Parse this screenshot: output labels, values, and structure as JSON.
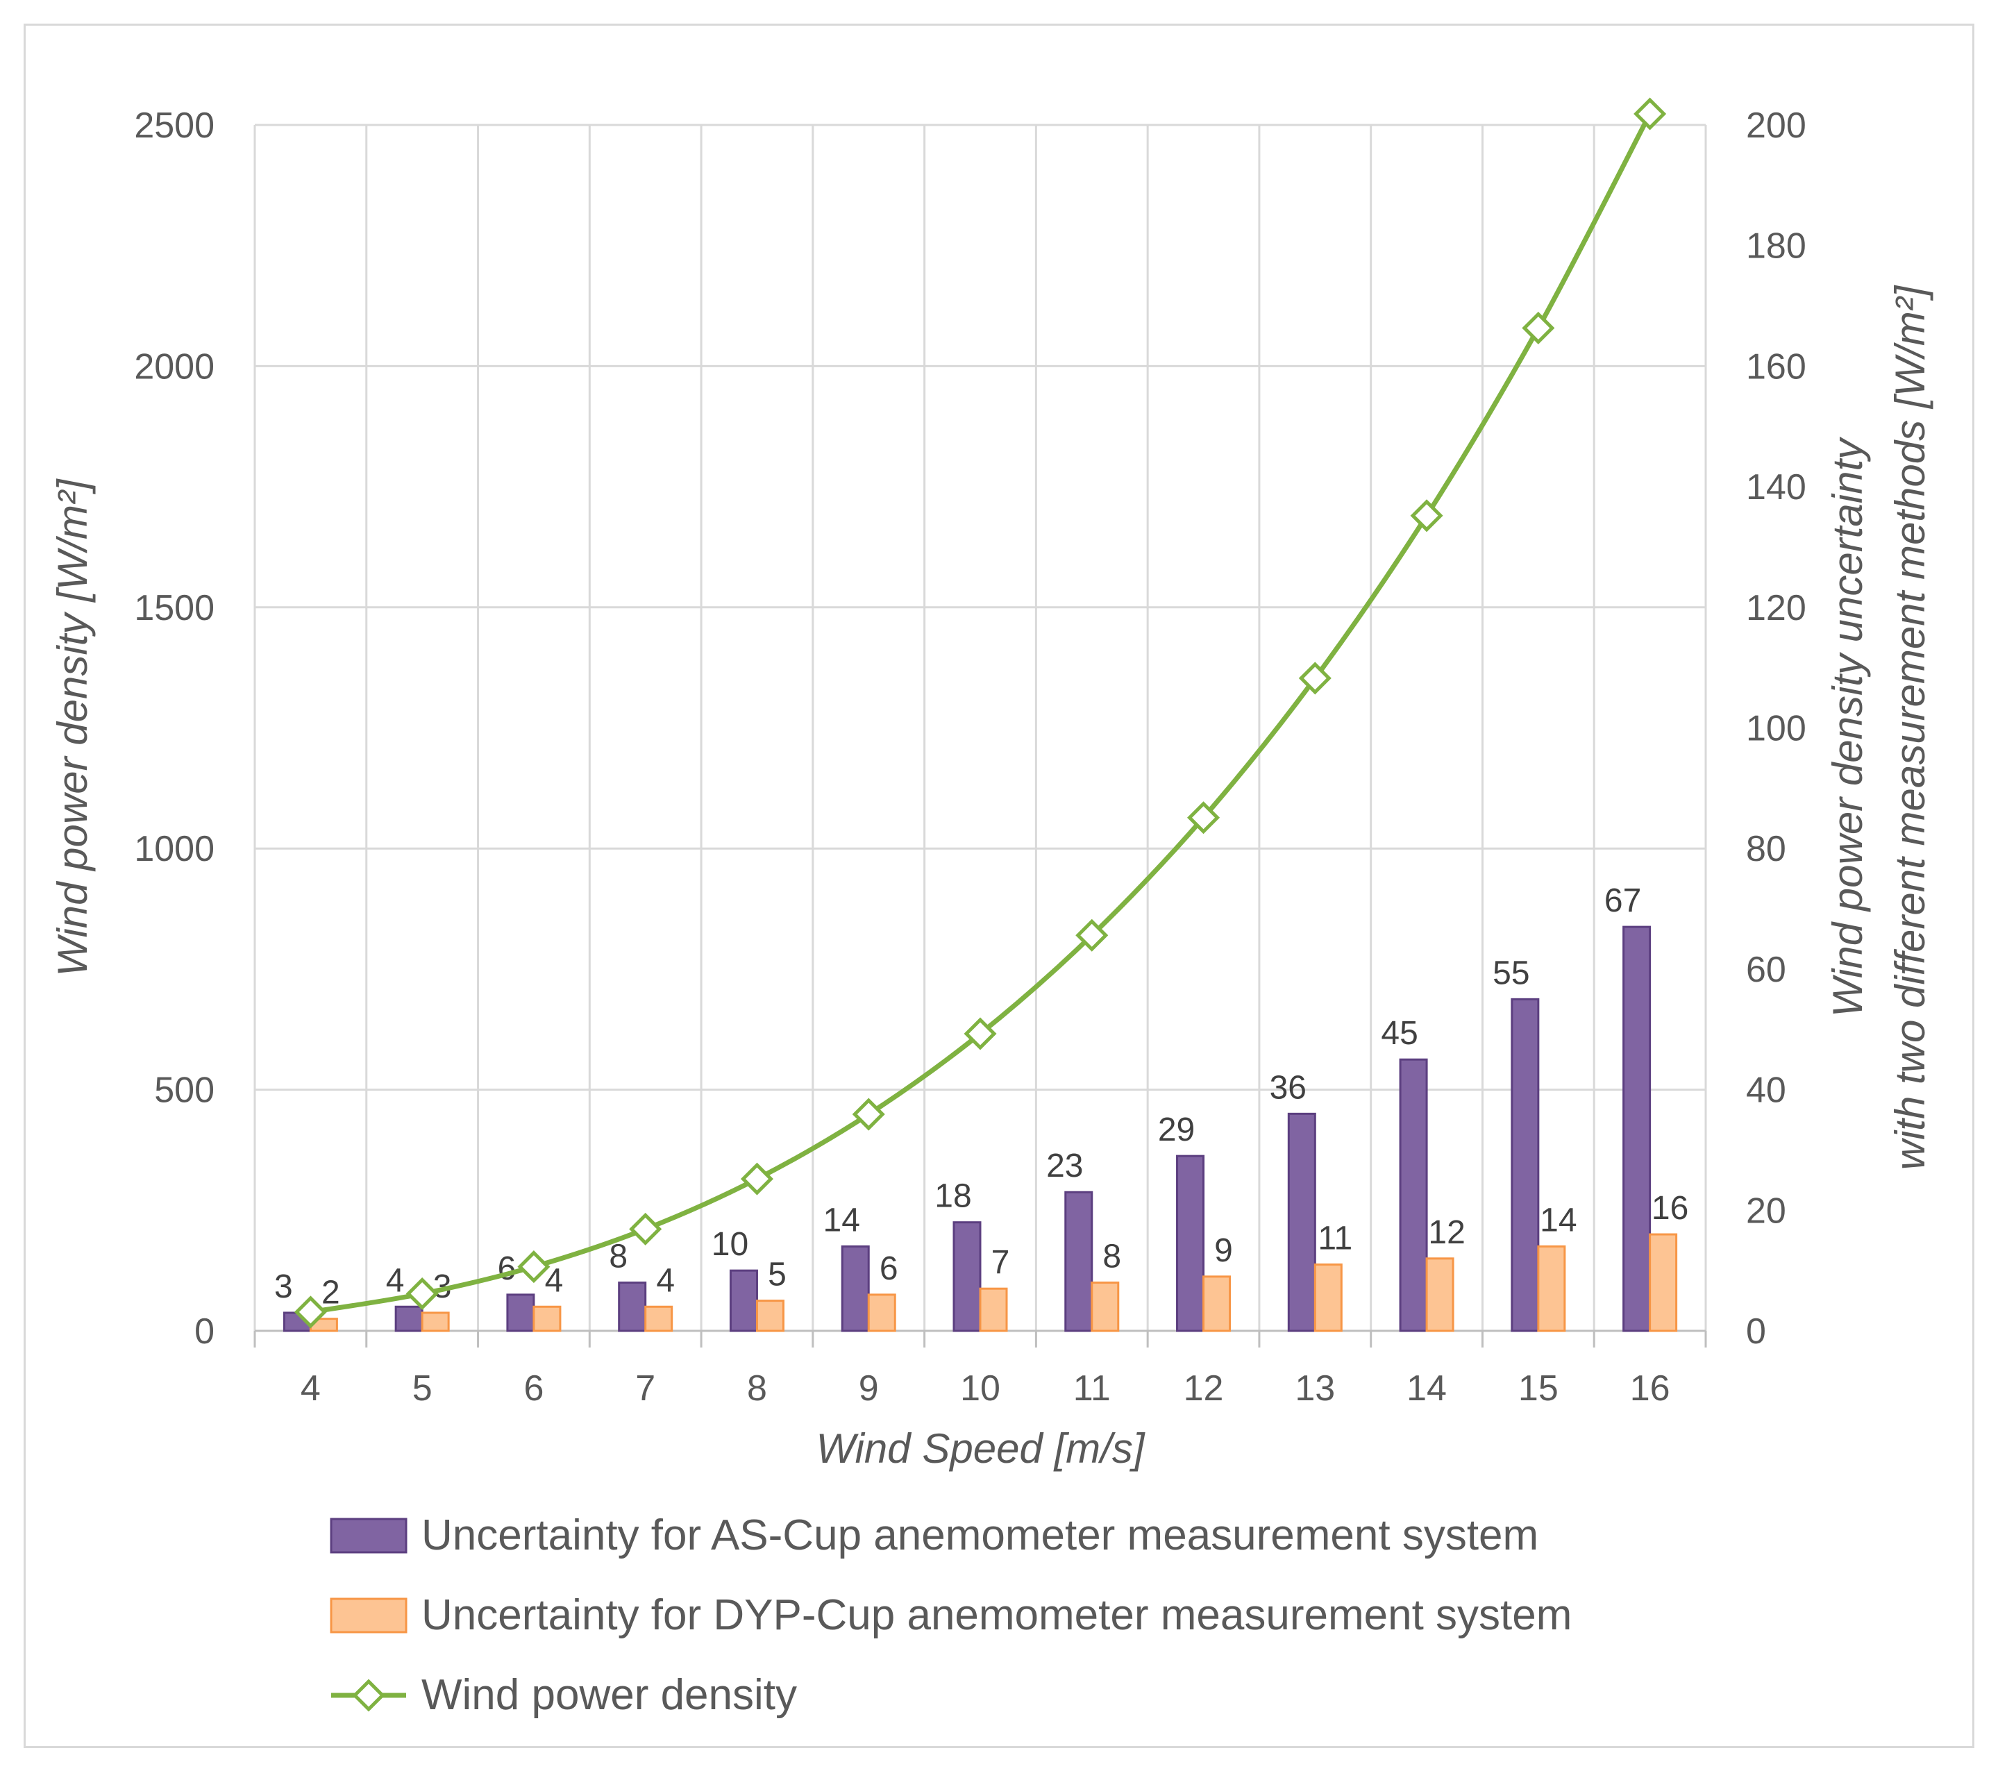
{
  "chart_data": {
    "type": "bar",
    "categories": [
      "4",
      "5",
      "6",
      "7",
      "8",
      "9",
      "10",
      "11",
      "12",
      "13",
      "14",
      "15",
      "16"
    ],
    "series": [
      {
        "name": "Uncertainty for AS-Cup anemometer measurement system",
        "kind": "bar",
        "axis": "right",
        "values": [
          3,
          4,
          6,
          8,
          10,
          14,
          18,
          23,
          29,
          36,
          45,
          55,
          67
        ],
        "color": "#8064a2",
        "edge": "#5c3f80"
      },
      {
        "name": "Uncertainty for DYP-Cup anemometer measurement system",
        "kind": "bar",
        "axis": "right",
        "values": [
          2,
          3,
          4,
          4,
          5,
          6,
          7,
          8,
          9,
          11,
          12,
          14,
          16
        ],
        "color": "#fdc493",
        "edge": "#f79646"
      },
      {
        "name": "Wind power density",
        "kind": "line",
        "axis": "left",
        "values": [
          39,
          77,
          133,
          211,
          315,
          449,
          616,
          820,
          1064,
          1353,
          1690,
          2079,
          2523
        ],
        "color": "#7fb241"
      }
    ],
    "bar_labels": {
      "as_cup": [
        "3",
        "4",
        "6",
        "8",
        "10",
        "14",
        "18",
        "23",
        "29",
        "36",
        "45",
        "55",
        "67"
      ],
      "dyp_cup": [
        "2",
        "3",
        "4",
        "4",
        "5",
        "6",
        "7",
        "8",
        "9",
        "11",
        "12",
        "14",
        "16"
      ]
    },
    "xlabel": "Wind Speed  [m/s]",
    "ylabel_left": "Wind power density  [W/m²]",
    "ylabel_right_line1": "Wind power density uncertainty",
    "ylabel_right_line2": "with two different measurement methods  [W/m²]",
    "ylim_left": [
      0,
      2500
    ],
    "ylim_right": [
      0,
      200
    ],
    "yticks_left": [
      "0",
      "500",
      "1000",
      "1500",
      "2000",
      "2500"
    ],
    "yticks_right": [
      "0",
      "20",
      "40",
      "60",
      "80",
      "100",
      "120",
      "140",
      "160",
      "180",
      "200"
    ],
    "grid": "vertical",
    "legend_position": "bottom"
  }
}
